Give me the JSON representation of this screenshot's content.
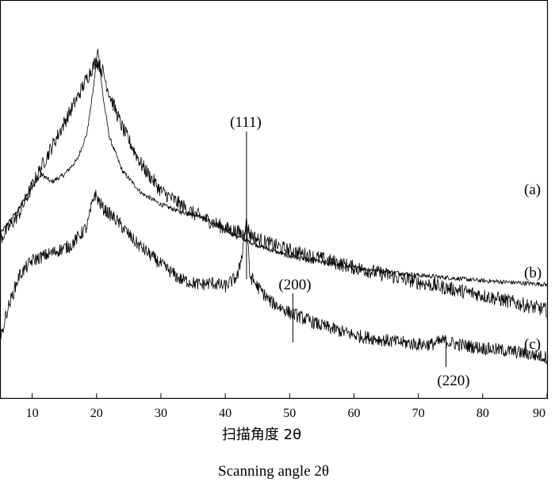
{
  "chart_data": {
    "type": "line",
    "title": "",
    "xlabel_cn": "扫描角度 2θ",
    "xlabel_en": "Scanning angle 2θ",
    "ylabel": "",
    "xlim": [
      5,
      90
    ],
    "x_ticks": [
      10,
      20,
      30,
      40,
      50,
      60,
      70,
      80,
      90
    ],
    "grid": false,
    "y_axis_ticks": false,
    "series": [
      {
        "name": "(a)",
        "x": [
          5,
          8,
          10,
          11.5,
          13,
          15,
          17,
          18.5,
          19.5,
          20.2,
          21,
          22,
          24,
          27,
          30,
          33,
          36,
          40,
          45,
          50,
          60,
          70,
          80,
          90
        ],
        "y": [
          0.58,
          0.65,
          0.71,
          0.74,
          0.72,
          0.74,
          0.78,
          0.85,
          0.97,
          1.08,
          0.95,
          0.84,
          0.75,
          0.69,
          0.66,
          0.64,
          0.63,
          0.59,
          0.55,
          0.52,
          0.49,
          0.47,
          0.455,
          0.445
        ],
        "noise": 0.006
      },
      {
        "name": "(b)",
        "x": [
          5,
          8,
          11,
          14,
          17,
          19,
          20,
          21,
          22,
          24,
          27,
          30,
          35,
          40,
          42.8,
          43.3,
          43.8,
          45,
          50,
          60,
          70,
          80,
          90
        ],
        "y": [
          0.3,
          0.37,
          0.48,
          0.58,
          0.68,
          0.75,
          0.78,
          0.75,
          0.69,
          0.6,
          0.5,
          0.43,
          0.37,
          0.33,
          0.315,
          0.345,
          0.315,
          0.3,
          0.27,
          0.225,
          0.185,
          0.15,
          0.11
        ],
        "noise": 0.02
      },
      {
        "name": "(c)",
        "x": [
          5,
          6,
          8,
          10,
          13,
          16,
          18.5,
          19.7,
          21,
          23,
          26,
          30,
          33,
          36,
          38,
          40,
          42,
          42.8,
          43.3,
          43.8,
          45,
          47,
          50,
          55,
          60,
          65,
          70,
          72,
          74,
          76,
          78,
          80,
          85,
          90
        ],
        "y": [
          0.0,
          0.08,
          0.18,
          0.22,
          0.24,
          0.26,
          0.31,
          0.4,
          0.36,
          0.33,
          0.27,
          0.21,
          0.17,
          0.155,
          0.16,
          0.15,
          0.18,
          0.26,
          0.33,
          0.18,
          0.15,
          0.11,
          0.08,
          0.045,
          0.02,
          0.005,
          -0.005,
          -0.005,
          0.005,
          -0.005,
          -0.01,
          -0.015,
          -0.025,
          -0.04
        ],
        "noise": 0.018
      }
    ],
    "peak_annotations": [
      {
        "label": "(111)",
        "x": 43.3
      },
      {
        "label": "(200)",
        "x": 50.5
      },
      {
        "label": "(220)",
        "x": 74.3
      }
    ]
  }
}
